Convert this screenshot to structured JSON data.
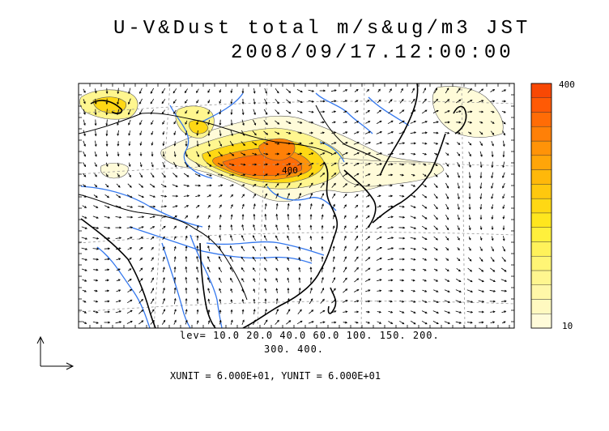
{
  "title": {
    "line1": "U-V&Dust total m/s&ug/m3 JST",
    "line2": "2008/09/17.12:00:00"
  },
  "contour_levels": {
    "line1": "lev= 10.0 20.0 40.0 60.0 100. 150. 200.",
    "line2": "300. 400."
  },
  "vector_units": "XUNIT = 6.000E+01, YUNIT = 6.000E+01",
  "colorbar": {
    "max_label": "400",
    "min_label": "10",
    "colors": [
      "#fffbd9",
      "#fff9c0",
      "#fff7a8",
      "#fff68f",
      "#fff575",
      "#fff25a",
      "#fff03c",
      "#ffe61e",
      "#ffd814",
      "#ffc80e",
      "#ffb80a",
      "#ffa509",
      "#ff9308",
      "#ff8007",
      "#ff6c06",
      "#ff5a05",
      "#f84804"
    ]
  },
  "marked_values": [
    "400"
  ]
}
